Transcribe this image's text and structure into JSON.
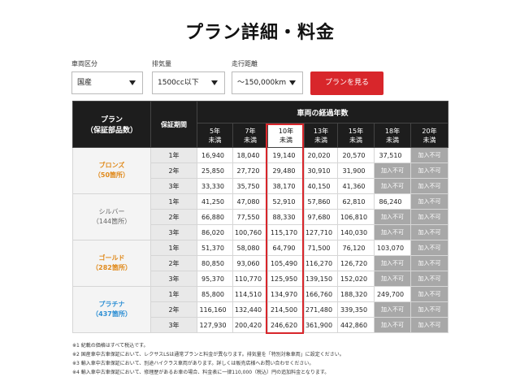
{
  "title": "プラン詳細・料金",
  "filters": {
    "vehicle_type": {
      "label": "車両区分",
      "value": "国産"
    },
    "displacement": {
      "label": "排気量",
      "value": "1500cc以下"
    },
    "mileage": {
      "label": "走行距離",
      "value": "～150,000km"
    },
    "show_button": "プランを見る"
  },
  "table": {
    "plan_header": [
      "プラン",
      "（保証部品数）"
    ],
    "term_header": "保証期間",
    "years_header": "車両の経過年数",
    "year_columns": [
      [
        "5年",
        "未満"
      ],
      [
        "7年",
        "未満"
      ],
      [
        "10年",
        "未満"
      ],
      [
        "13年",
        "未満"
      ],
      [
        "15年",
        "未満"
      ],
      [
        "18年",
        "未満"
      ],
      [
        "20年",
        "未満"
      ]
    ],
    "highlight_color": "#d8262b",
    "plans": [
      {
        "name": "ブロンズ",
        "parts": "（50箇所）",
        "rows": [
          {
            "term": "1年",
            "prices": [
              "16,940",
              "18,040",
              "19,140",
              "20,020",
              "20,570",
              "37,510",
              "加入不可"
            ]
          },
          {
            "term": "2年",
            "prices": [
              "25,850",
              "27,720",
              "29,480",
              "30,910",
              "31,900",
              "加入不可",
              "加入不可"
            ]
          },
          {
            "term": "3年",
            "prices": [
              "33,330",
              "35,750",
              "38,170",
              "40,150",
              "41,360",
              "加入不可",
              "加入不可"
            ]
          }
        ]
      },
      {
        "name": "シルバー",
        "parts": "（144箇所）",
        "rows": [
          {
            "term": "1年",
            "prices": [
              "41,250",
              "47,080",
              "52,910",
              "57,860",
              "62,810",
              "86,240",
              "加入不可"
            ]
          },
          {
            "term": "2年",
            "prices": [
              "66,880",
              "77,550",
              "88,330",
              "97,680",
              "106,810",
              "加入不可",
              "加入不可"
            ]
          },
          {
            "term": "3年",
            "prices": [
              "86,020",
              "100,760",
              "115,170",
              "127,710",
              "140,030",
              "加入不可",
              "加入不可"
            ]
          }
        ]
      },
      {
        "name": "ゴールド",
        "parts": "（282箇所）",
        "rows": [
          {
            "term": "1年",
            "prices": [
              "51,370",
              "58,080",
              "64,790",
              "71,500",
              "76,120",
              "103,070",
              "加入不可"
            ]
          },
          {
            "term": "2年",
            "prices": [
              "80,850",
              "93,060",
              "105,490",
              "116,270",
              "126,720",
              "加入不可",
              "加入不可"
            ]
          },
          {
            "term": "3年",
            "prices": [
              "95,370",
              "110,770",
              "125,950",
              "139,150",
              "152,020",
              "加入不可",
              "加入不可"
            ]
          }
        ]
      },
      {
        "name": "プラチナ",
        "parts": "（437箇所）",
        "rows": [
          {
            "term": "1年",
            "prices": [
              "85,800",
              "114,510",
              "134,970",
              "166,760",
              "188,320",
              "249,700",
              "加入不可"
            ]
          },
          {
            "term": "2年",
            "prices": [
              "116,160",
              "132,440",
              "214,500",
              "271,480",
              "339,350",
              "加入不可",
              "加入不可"
            ]
          },
          {
            "term": "3年",
            "prices": [
              "127,930",
              "200,420",
              "246,620",
              "361,900",
              "442,860",
              "加入不可",
              "加入不可"
            ]
          }
        ]
      }
    ]
  },
  "notes": [
    "※1 紀載の価格はすべて税込です。",
    "※2 国産車中古車保証において、レクサスLSは通常プランと料金が異なります。排気量を「特別対象車両」に設定ください。",
    "※3 輸入車中古車保証において、別途ハイクラス車両があります。詳しくは販売店様へお問い合わせください。",
    "※4 輸入車中古車保証において、修理歴があるお車の場合、料金表に一律110,000（税込）円の追加料金となります。"
  ]
}
